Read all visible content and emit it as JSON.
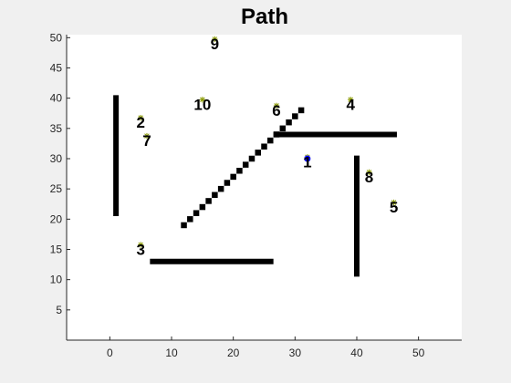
{
  "chart_data": {
    "type": "scatter",
    "title": "Path",
    "xlabel": "",
    "ylabel": "",
    "xlim": [
      -7,
      57
    ],
    "ylim": [
      0,
      50.5
    ],
    "xticks": [
      0,
      10,
      20,
      30,
      40,
      50
    ],
    "yticks": [
      5,
      10,
      15,
      20,
      25,
      30,
      35,
      40,
      45,
      50
    ],
    "grid": false,
    "colors": {
      "figure_bg": "#f0f0f0",
      "axes_bg": "#ffffff",
      "obstacle": "#000000",
      "waypoint_marker": "#8a9a00",
      "start_marker": "#0000ff"
    },
    "start": {
      "x": 32,
      "y": 30
    },
    "waypoints": [
      {
        "label": "1",
        "x": 32,
        "y": 29.5
      },
      {
        "label": "2",
        "x": 5,
        "y": 36
      },
      {
        "label": "3",
        "x": 5,
        "y": 15
      },
      {
        "label": "4",
        "x": 39,
        "y": 39
      },
      {
        "label": "5",
        "x": 46,
        "y": 22
      },
      {
        "label": "6",
        "x": 27,
        "y": 38
      },
      {
        "label": "7",
        "x": 6,
        "y": 33
      },
      {
        "label": "8",
        "x": 42,
        "y": 27
      },
      {
        "label": "9",
        "x": 17,
        "y": 49
      },
      {
        "label": "10",
        "x": 15,
        "y": 39
      }
    ],
    "walls": [
      {
        "x1": 1,
        "y1": 20.5,
        "x2": 1,
        "y2": 40.5
      },
      {
        "x1": 6.5,
        "y1": 13,
        "x2": 26.5,
        "y2": 13
      },
      {
        "x1": 26.5,
        "y1": 34,
        "x2": 46.5,
        "y2": 34
      },
      {
        "x1": 40,
        "y1": 10.5,
        "x2": 40,
        "y2": 30.5
      }
    ],
    "diagonal_blocks": [
      [
        12,
        19
      ],
      [
        13,
        20
      ],
      [
        14,
        21
      ],
      [
        15,
        22
      ],
      [
        16,
        23
      ],
      [
        17,
        24
      ],
      [
        18,
        25
      ],
      [
        19,
        26
      ],
      [
        20,
        27
      ],
      [
        21,
        28
      ],
      [
        22,
        29
      ],
      [
        23,
        30
      ],
      [
        24,
        31
      ],
      [
        25,
        32
      ],
      [
        26,
        33
      ],
      [
        27,
        34
      ],
      [
        28,
        35
      ],
      [
        29,
        36
      ],
      [
        30,
        37
      ],
      [
        31,
        38
      ]
    ]
  }
}
